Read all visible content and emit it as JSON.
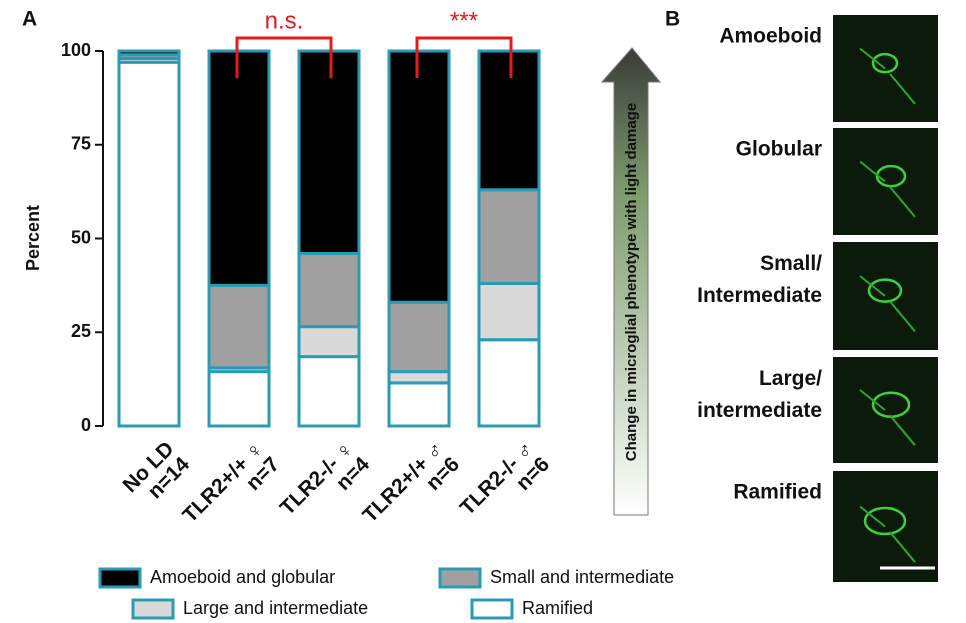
{
  "chart_data": {
    "type": "stacked_bar",
    "panel_label": "A",
    "ylabel": "Percent",
    "categories": [
      "No LD",
      "TLR2+/+ ♀",
      "TLR2-/- ♀",
      "TLR2+/+ ♂",
      "TLR2-/- ♂"
    ],
    "n_labels": [
      "n=14",
      "n=7",
      "n=4",
      "n=6",
      "n=6"
    ],
    "series": [
      {
        "name": "Amoeboid and globular",
        "color": "#000000",
        "values": [
          1,
          62.5,
          54,
          67,
          37
        ]
      },
      {
        "name": "Small and intermediate",
        "color": "#a0a0a0",
        "values": [
          1,
          22,
          19.5,
          18.5,
          25
        ]
      },
      {
        "name": "Large and intermediate",
        "color": "#d9d9d9",
        "values": [
          1,
          1,
          8,
          3,
          15
        ]
      },
      {
        "name": "Ramified",
        "color": "#ffffff",
        "values": [
          97,
          14.5,
          18.5,
          11.5,
          23
        ]
      }
    ],
    "edge_color": "#2a9bb5",
    "ylim": [
      0,
      100
    ],
    "yticks": [
      0,
      25,
      50,
      75,
      100
    ],
    "annotations": [
      {
        "text": "n.s.",
        "from": 1,
        "to": 2,
        "color": "#e8191b"
      },
      {
        "text": "***",
        "from": 3,
        "to": 4,
        "color": "#e8191b"
      }
    ]
  },
  "arrow_text": "Change in microglial phenotype with light damage",
  "panel_b": {
    "label": "B",
    "images": [
      "Amoeboid",
      "Globular",
      "Small/\nIntermediate",
      "Large/\nintermediate",
      "Ramified"
    ]
  }
}
